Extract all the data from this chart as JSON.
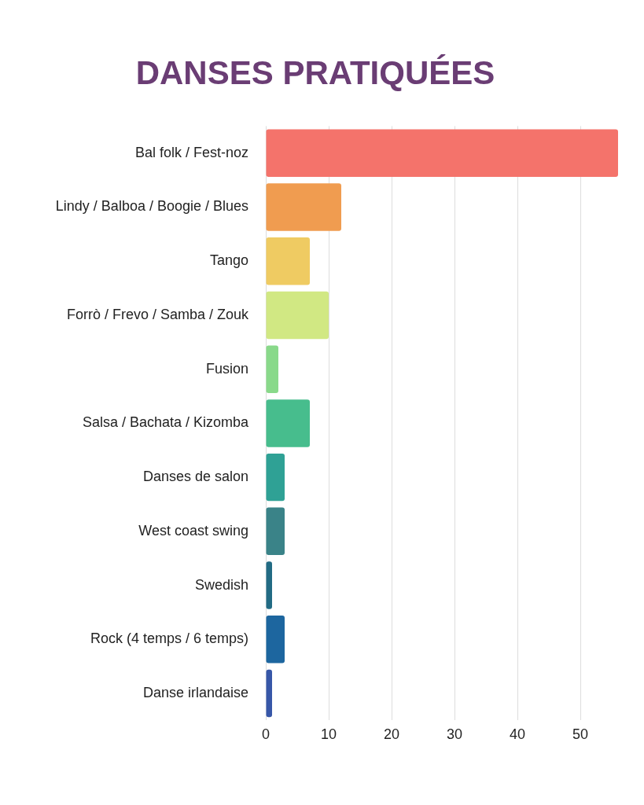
{
  "chart_data": {
    "type": "bar",
    "title": "DANSES PRATIQUÉES",
    "orientation": "horizontal",
    "categories": [
      "Bal folk / Fest-noz",
      "Lindy / Balboa / Boogie / Blues",
      "Tango",
      "Forrò / Frevo / Samba / Zouk",
      "Fusion",
      "Salsa / Bachata / Kizomba",
      "Danses de salon",
      "West coast swing",
      "Swedish",
      "Rock (4 temps / 6 temps)",
      "Danse irlandaise"
    ],
    "values": [
      56,
      12,
      7,
      10,
      2,
      7,
      3,
      3,
      1,
      3,
      1
    ],
    "colors": [
      "#f4736b",
      "#f09c50",
      "#efcb62",
      "#d1e883",
      "#89d98a",
      "#47bd8d",
      "#2fa195",
      "#3a8388",
      "#226b84",
      "#1d669f",
      "#3757a8"
    ],
    "xlim": [
      0,
      56
    ],
    "xticks": [
      0,
      10,
      20,
      30,
      40,
      50
    ],
    "grid": "x",
    "legend": false
  }
}
